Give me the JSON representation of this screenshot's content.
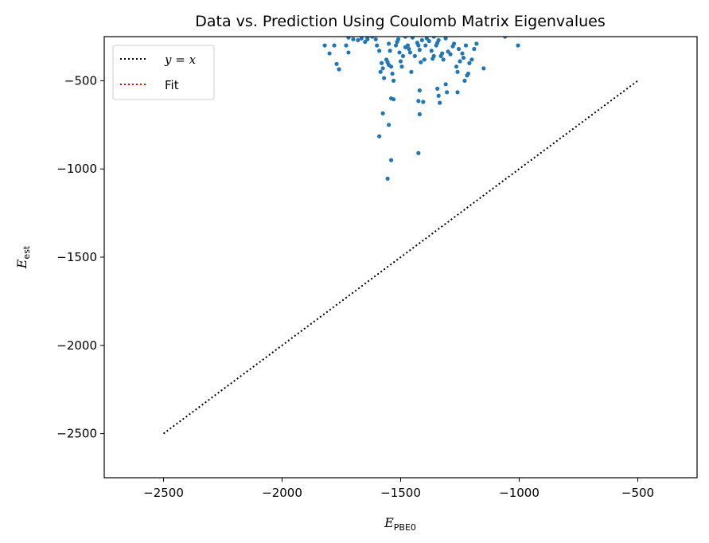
{
  "chart_data": {
    "type": "scatter",
    "title": "Data vs. Prediction Using Coulomb Matrix Eigenvalues",
    "xlabel": {
      "main": "E",
      "sub": "PBE0"
    },
    "ylabel": {
      "main": "E",
      "sub": "est"
    },
    "xlim": [
      -2750,
      -250
    ],
    "ylim": [
      -2750,
      -250
    ],
    "xticks": [
      -2500,
      -2000,
      -1500,
      -1000,
      -500
    ],
    "yticks": [
      -2500,
      -2000,
      -1500,
      -1000,
      -500
    ],
    "tick_labels_x": [
      "−2500",
      "−2000",
      "−1500",
      "−1000",
      "−500"
    ],
    "tick_labels_y": [
      "−2500",
      "−2000",
      "−1500",
      "−1000",
      "−500"
    ],
    "legend": {
      "placement": "top-left",
      "entries": [
        {
          "label_prefix": "y = x",
          "label": "",
          "color": "#000000",
          "style": "dotted"
        },
        {
          "label_prefix": "",
          "label": "Fit",
          "color": "#ff0000",
          "style": "dotted"
        }
      ]
    },
    "series": [
      {
        "kind": "line",
        "color": "#000000",
        "style": "dotted",
        "x": [
          -2500,
          -500
        ],
        "y": [
          -2500,
          -500
        ]
      },
      {
        "kind": "scatter",
        "color": "#1f77b4",
        "points": [
          [
            -1820,
            -300
          ],
          [
            -1800,
            -345
          ],
          [
            -1780,
            -300
          ],
          [
            -1770,
            -405
          ],
          [
            -1760,
            -435
          ],
          [
            -1730,
            -300
          ],
          [
            -1720,
            -340
          ],
          [
            -1700,
            -265
          ],
          [
            -1680,
            -270
          ],
          [
            -1665,
            -260
          ],
          [
            -1650,
            -280
          ],
          [
            -1640,
            -265
          ],
          [
            -1620,
            -250
          ],
          [
            -1605,
            -265
          ],
          [
            -1600,
            -300
          ],
          [
            -1590,
            -330
          ],
          [
            -1585,
            -450
          ],
          [
            -1580,
            -400
          ],
          [
            -1575,
            -430
          ],
          [
            -1570,
            -485
          ],
          [
            -1560,
            -380
          ],
          [
            -1555,
            -395
          ],
          [
            -1550,
            -290
          ],
          [
            -1545,
            -330
          ],
          [
            -1540,
            -420
          ],
          [
            -1535,
            -460
          ],
          [
            -1530,
            -500
          ],
          [
            -1520,
            -300
          ],
          [
            -1515,
            -280
          ],
          [
            -1510,
            -265
          ],
          [
            -1505,
            -340
          ],
          [
            -1500,
            -390
          ],
          [
            -1495,
            -420
          ],
          [
            -1490,
            -360
          ],
          [
            -1480,
            -310
          ],
          [
            -1470,
            -300
          ],
          [
            -1465,
            -320
          ],
          [
            -1460,
            -340
          ],
          [
            -1455,
            -450
          ],
          [
            -1450,
            -255
          ],
          [
            -1440,
            -360
          ],
          [
            -1430,
            -285
          ],
          [
            -1425,
            -300
          ],
          [
            -1420,
            -325
          ],
          [
            -1415,
            -395
          ],
          [
            -1410,
            -270
          ],
          [
            -1400,
            -380
          ],
          [
            -1395,
            -300
          ],
          [
            -1390,
            -260
          ],
          [
            -1380,
            -275
          ],
          [
            -1370,
            -330
          ],
          [
            -1365,
            -375
          ],
          [
            -1360,
            -360
          ],
          [
            -1350,
            -300
          ],
          [
            -1345,
            -285
          ],
          [
            -1340,
            -270
          ],
          [
            -1330,
            -360
          ],
          [
            -1325,
            -345
          ],
          [
            -1320,
            -380
          ],
          [
            -1310,
            -260
          ],
          [
            -1300,
            -335
          ],
          [
            -1290,
            -350
          ],
          [
            -1280,
            -305
          ],
          [
            -1275,
            -290
          ],
          [
            -1265,
            -420
          ],
          [
            -1260,
            -450
          ],
          [
            -1255,
            -320
          ],
          [
            -1250,
            -390
          ],
          [
            -1240,
            -345
          ],
          [
            -1235,
            -370
          ],
          [
            -1230,
            -500
          ],
          [
            -1225,
            -300
          ],
          [
            -1220,
            -470
          ],
          [
            -1215,
            -460
          ],
          [
            -1210,
            -400
          ],
          [
            -1200,
            -380
          ],
          [
            -1190,
            -320
          ],
          [
            -1180,
            -290
          ],
          [
            -1150,
            -430
          ],
          [
            -1060,
            -250
          ],
          [
            -1005,
            -300
          ],
          [
            -1540,
            -600
          ],
          [
            -1530,
            -605
          ],
          [
            -1575,
            -685
          ],
          [
            -1590,
            -815
          ],
          [
            -1550,
            -750
          ],
          [
            -1540,
            -950
          ],
          [
            -1555,
            -1055
          ],
          [
            -1420,
            -555
          ],
          [
            -1425,
            -615
          ],
          [
            -1405,
            -620
          ],
          [
            -1420,
            -690
          ],
          [
            -1425,
            -910
          ],
          [
            -1345,
            -545
          ],
          [
            -1340,
            -585
          ],
          [
            -1335,
            -625
          ],
          [
            -1305,
            -565
          ],
          [
            -1260,
            -565
          ],
          [
            -1310,
            -520
          ],
          [
            -1550,
            -410
          ],
          [
            -1480,
            -250
          ],
          [
            -1360,
            -250
          ],
          [
            -1640,
            -255
          ],
          [
            -1720,
            -255
          ]
        ]
      }
    ]
  }
}
